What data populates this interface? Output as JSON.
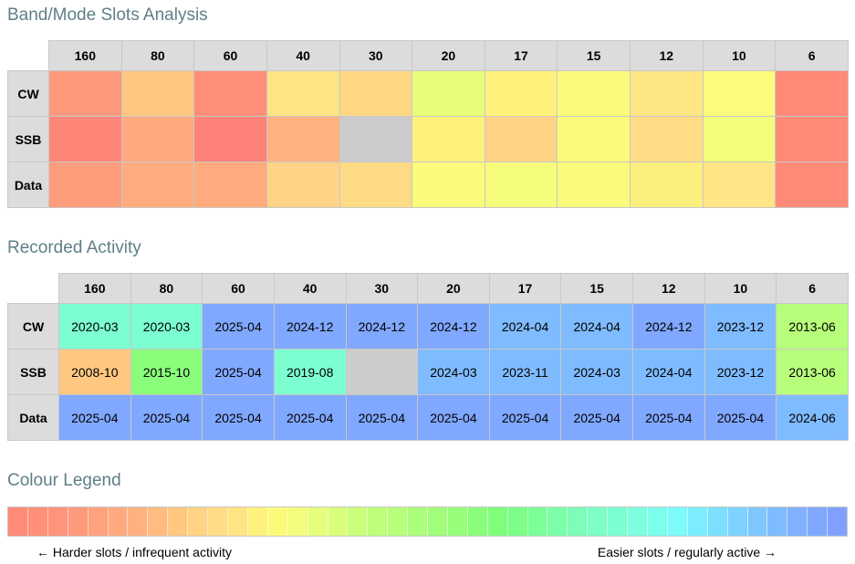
{
  "slots_section": {
    "title": "Band/Mode Slots Analysis",
    "bands": [
      "160",
      "80",
      "60",
      "40",
      "30",
      "20",
      "17",
      "15",
      "12",
      "10",
      "6"
    ],
    "rows": [
      {
        "mode": "CW",
        "colors": [
          "#fe9a7b",
          "#ffc780",
          "#ff8f78",
          "#ffe484",
          "#ffd784",
          "#e6fe7b",
          "#fef27c",
          "#fbfb7b",
          "#ffe684",
          "#fbfb7c",
          "#ff8a78"
        ]
      },
      {
        "mode": "SSB",
        "colors": [
          "#fe8679",
          "#ffaa7e",
          "#ff8279",
          "#ffb27f",
          "#cccccc",
          "#fef27c",
          "#ffd285",
          "#fbfb7b",
          "#ffdc85",
          "#f3fc7b",
          "#ff8a78"
        ]
      },
      {
        "mode": "Data",
        "colors": [
          "#fe9d7b",
          "#ffac7e",
          "#ffab7e",
          "#ffd285",
          "#ffda84",
          "#fbfb7b",
          "#f5fd7b",
          "#fbfb7b",
          "#fbf07d",
          "#ffe585",
          "#ff8a78"
        ]
      }
    ]
  },
  "activity_section": {
    "title": "Recorded Activity",
    "bands": [
      "160",
      "80",
      "60",
      "40",
      "30",
      "20",
      "17",
      "15",
      "12",
      "10",
      "6"
    ],
    "rows": [
      {
        "mode": "CW",
        "cells": [
          {
            "value": "2020-03",
            "color": "#7cfed1"
          },
          {
            "value": "2020-03",
            "color": "#7cfed1"
          },
          {
            "value": "2025-04",
            "color": "#80a8ff"
          },
          {
            "value": "2024-12",
            "color": "#80a8ff"
          },
          {
            "value": "2024-12",
            "color": "#80a8ff"
          },
          {
            "value": "2024-12",
            "color": "#80a8ff"
          },
          {
            "value": "2024-04",
            "color": "#7fbbff"
          },
          {
            "value": "2024-04",
            "color": "#7fbbff"
          },
          {
            "value": "2024-12",
            "color": "#80a8ff"
          },
          {
            "value": "2023-12",
            "color": "#7fbbff"
          },
          {
            "value": "2013-06",
            "color": "#b7fe7b"
          }
        ]
      },
      {
        "mode": "SSB",
        "cells": [
          {
            "value": "2008-10",
            "color": "#ffc780"
          },
          {
            "value": "2015-10",
            "color": "#8afe7b"
          },
          {
            "value": "2025-04",
            "color": "#80a8ff"
          },
          {
            "value": "2019-08",
            "color": "#7cfed1"
          },
          {
            "value": "",
            "color": "#cccccc"
          },
          {
            "value": "2024-03",
            "color": "#7fbbff"
          },
          {
            "value": "2023-11",
            "color": "#7fbbff"
          },
          {
            "value": "2024-03",
            "color": "#7fbbff"
          },
          {
            "value": "2024-04",
            "color": "#7fbbff"
          },
          {
            "value": "2023-12",
            "color": "#7fbbff"
          },
          {
            "value": "2013-06",
            "color": "#b7fe7b"
          }
        ]
      },
      {
        "mode": "Data",
        "cells": [
          {
            "value": "2025-04",
            "color": "#80a8ff"
          },
          {
            "value": "2025-04",
            "color": "#80a8ff"
          },
          {
            "value": "2025-04",
            "color": "#80a8ff"
          },
          {
            "value": "2025-04",
            "color": "#80a8ff"
          },
          {
            "value": "2025-04",
            "color": "#80a8ff"
          },
          {
            "value": "2025-04",
            "color": "#80a8ff"
          },
          {
            "value": "2025-04",
            "color": "#80a8ff"
          },
          {
            "value": "2025-04",
            "color": "#80a8ff"
          },
          {
            "value": "2025-04",
            "color": "#80a8ff"
          },
          {
            "value": "2025-04",
            "color": "#80a8ff"
          },
          {
            "value": "2024-06",
            "color": "#7fbbff"
          }
        ]
      }
    ]
  },
  "legend": {
    "title": "Colour Legend",
    "left_caption": "← Harder slots / infrequent activity",
    "right_caption": "Easier slots / regularly active →",
    "swatches": [
      "#ff8a78",
      "#ff8f78",
      "#fe9479",
      "#fe9a7b",
      "#ffa27d",
      "#ffaa7e",
      "#ffb27f",
      "#ffbb80",
      "#ffc780",
      "#ffd284",
      "#ffdc85",
      "#ffe484",
      "#fef27c",
      "#fbfb7b",
      "#f3fc7b",
      "#e6fe7b",
      "#d8fe7b",
      "#cbfe7b",
      "#bffe7b",
      "#b7fe7b",
      "#abfe7b",
      "#a0fe7b",
      "#96fe7b",
      "#8afe7b",
      "#7ffe7c",
      "#7cfe88",
      "#7cfe98",
      "#7cfea8",
      "#7cfeb8",
      "#7cfec6",
      "#7cfed1",
      "#7cfedf",
      "#7cfeed",
      "#7cfbfb",
      "#7cedfe",
      "#7cdffe",
      "#7ed2ff",
      "#7fc6ff",
      "#7fbbff",
      "#80b0ff",
      "#80a8ff",
      "#80a0ff"
    ]
  }
}
